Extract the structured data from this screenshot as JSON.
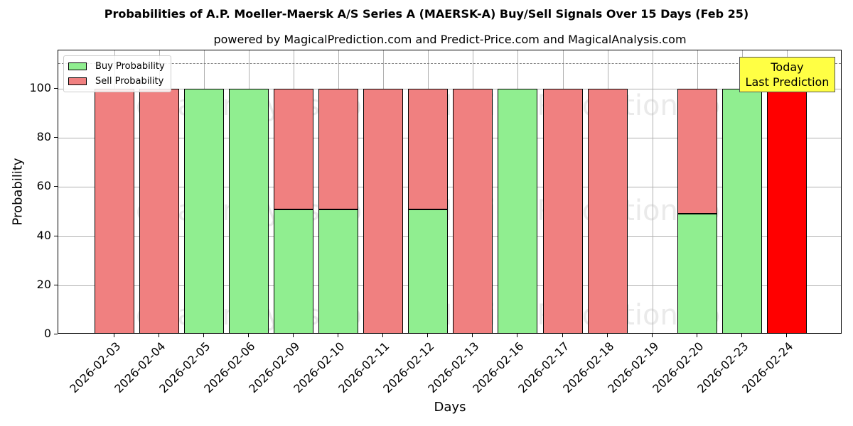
{
  "title": "Probabilities of A.P. Moeller-Maersk A/S Series A (MAERSK-A) Buy/Sell Signals Over 15 Days (Feb 25)",
  "subtitle": "powered by MagicalPrediction.com and Predict-Price.com and MagicalAnalysis.com",
  "legend": {
    "buy": "Buy Probability",
    "sell": "Sell Probability"
  },
  "annotation": {
    "line1": "Today",
    "line2": "Last Prediction"
  },
  "watermarks": [
    "MagicalAnalysis.com",
    "MagicalPrediction.com"
  ],
  "colors": {
    "buy": "#90ee90",
    "sell": "#f08080",
    "today": "#ff0000",
    "annotation_bg": "#ffff44"
  },
  "chart_data": {
    "type": "bar",
    "stacked": true,
    "title": "Probabilities of A.P. Moeller-Maersk A/S Series A (MAERSK-A) Buy/Sell Signals Over 15 Days (Feb 25)",
    "subtitle": "powered by MagicalPrediction.com and Predict-Price.com and MagicalAnalysis.com",
    "xlabel": "Days",
    "ylabel": "Probability",
    "ylim": [
      0,
      115
    ],
    "yticks": [
      0,
      20,
      40,
      60,
      80,
      100
    ],
    "grid": true,
    "legend_position": "upper left",
    "reference_line": {
      "y": 110,
      "style": "dashed"
    },
    "categories": [
      "2026-02-03",
      "2026-02-04",
      "2026-02-05",
      "2026-02-06",
      "2026-02-09",
      "2026-02-10",
      "2026-02-11",
      "2026-02-12",
      "2026-02-13",
      "2026-02-16",
      "2026-02-17",
      "2026-02-18",
      "2026-02-19",
      "2026-02-20",
      "2026-02-23",
      "2026-02-24"
    ],
    "series": [
      {
        "name": "Buy Probability",
        "values": [
          0,
          0,
          100,
          100,
          51,
          51,
          0,
          51,
          0,
          100,
          0,
          0,
          0,
          49,
          100,
          0
        ]
      },
      {
        "name": "Sell Probability",
        "values": [
          100,
          100,
          0,
          0,
          49,
          49,
          100,
          49,
          100,
          0,
          100,
          100,
          0,
          51,
          0,
          100
        ]
      }
    ],
    "annotations": [
      {
        "text": "Today\nLast Prediction",
        "x": "2026-02-24",
        "y": 110,
        "bar_color": "#ff0000"
      }
    ]
  }
}
